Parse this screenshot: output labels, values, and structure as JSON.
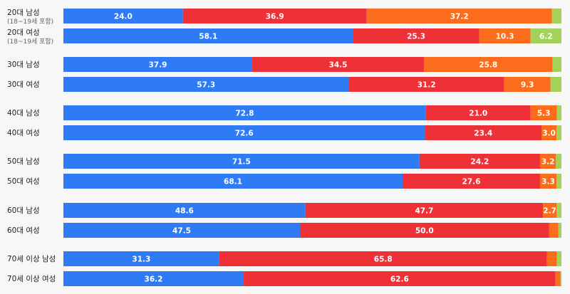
{
  "chart_data": {
    "type": "bar",
    "orientation": "horizontal",
    "stacked": true,
    "normalized_total": 100,
    "colors": [
      "#2f7bf5",
      "#ee3137",
      "#fb6d1d",
      "#a3d15a"
    ],
    "rows": [
      {
        "label": "20대 남성",
        "sublabel": "(18~19세 포함)",
        "values": [
          24.0,
          36.9,
          37.2,
          1.9
        ],
        "labels": [
          "24.0",
          "36.9",
          "37.2",
          ""
        ]
      },
      {
        "label": "20대 여성",
        "sublabel": "(18~19세 포함)",
        "values": [
          58.1,
          25.3,
          10.3,
          6.2
        ],
        "labels": [
          "58.1",
          "25.3",
          "10.3",
          "6.2"
        ]
      },
      {
        "label": "30대 남성",
        "values": [
          37.9,
          34.5,
          25.8,
          1.8
        ],
        "labels": [
          "37.9",
          "34.5",
          "25.8",
          ""
        ]
      },
      {
        "label": "30대 여성",
        "values": [
          57.3,
          31.2,
          9.3,
          2.2
        ],
        "labels": [
          "57.3",
          "31.2",
          "9.3",
          ""
        ]
      },
      {
        "label": "40대 남성",
        "values": [
          72.8,
          21.0,
          5.3,
          0.9
        ],
        "labels": [
          "72.8",
          "21.0",
          "5.3",
          ""
        ]
      },
      {
        "label": "40대 여성",
        "values": [
          72.6,
          23.4,
          3.0,
          1.0
        ],
        "labels": [
          "72.6",
          "23.4",
          "3.0",
          ""
        ]
      },
      {
        "label": "50대 남성",
        "values": [
          71.5,
          24.2,
          3.2,
          1.1
        ],
        "labels": [
          "71.5",
          "24.2",
          "3.2",
          ""
        ]
      },
      {
        "label": "50대 여성",
        "values": [
          68.1,
          27.6,
          3.3,
          1.0
        ],
        "labels": [
          "68.1",
          "27.6",
          "3.3",
          ""
        ]
      },
      {
        "label": "60대 남성",
        "values": [
          48.6,
          47.7,
          2.7,
          1.0
        ],
        "labels": [
          "48.6",
          "47.7",
          "2.7",
          ""
        ]
      },
      {
        "label": "60대 여성",
        "values": [
          47.5,
          50.0,
          1.9,
          0.6
        ],
        "labels": [
          "47.5",
          "50.0",
          "",
          ""
        ]
      },
      {
        "label": "70세 이상 남성",
        "values": [
          31.3,
          65.8,
          2.0,
          0.9
        ],
        "labels": [
          "31.3",
          "65.8",
          "",
          ""
        ]
      },
      {
        "label": "70세 이상 여성",
        "values": [
          36.2,
          62.6,
          1.0,
          0.2
        ],
        "labels": [
          "36.2",
          "62.6",
          "",
          ""
        ]
      }
    ]
  }
}
